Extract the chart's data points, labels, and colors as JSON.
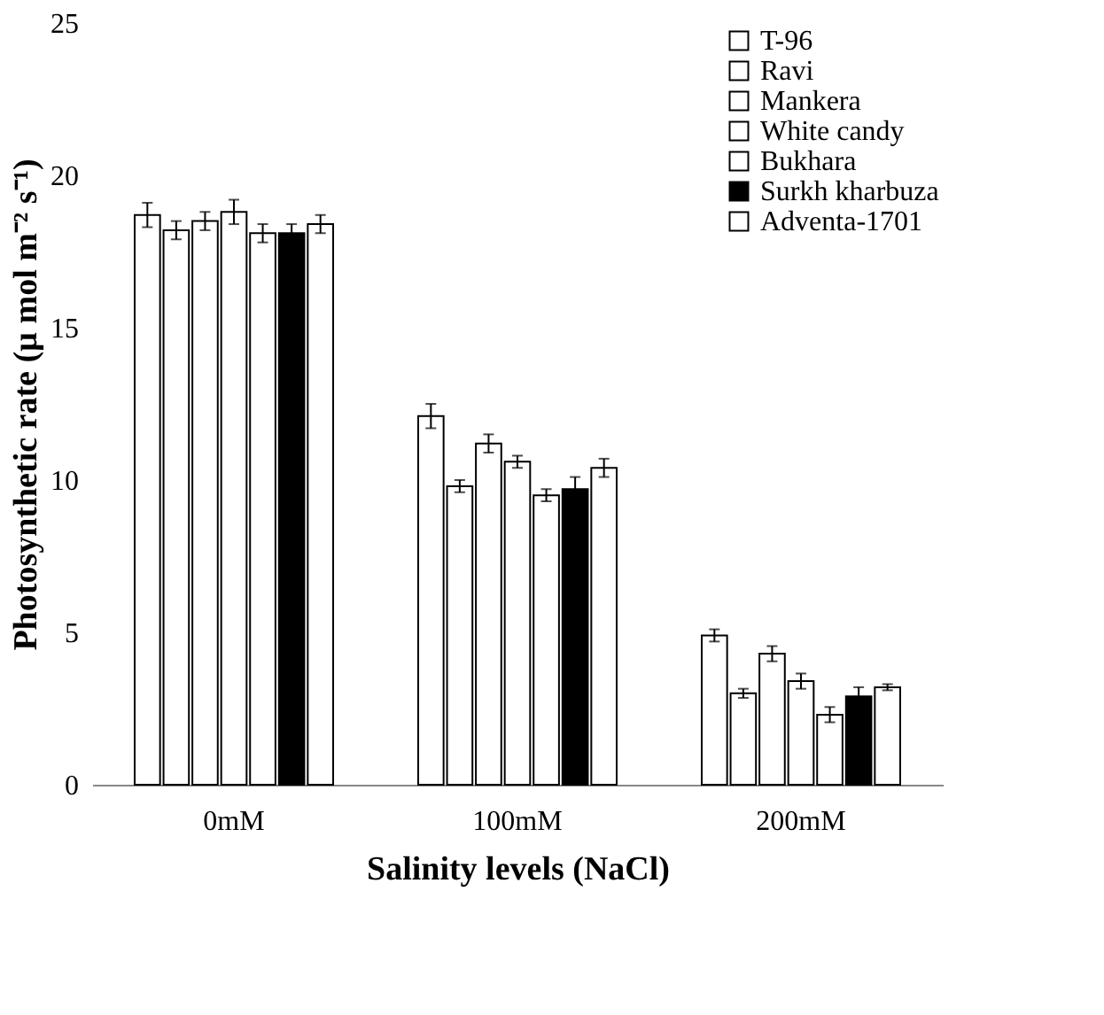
{
  "chart_data": {
    "type": "bar",
    "xlabel": "Salinity levels (NaCl)",
    "ylabel": "Photosynthetic rate (µ mol m⁻² s⁻¹)",
    "categories": [
      "0mM",
      "100mM",
      "200mM"
    ],
    "series": [
      {
        "name": "T-96",
        "color": "#ffffff",
        "values": [
          18.7,
          12.1,
          4.9
        ],
        "errors": [
          0.4,
          0.4,
          0.2
        ]
      },
      {
        "name": "Ravi",
        "color": "#ffffff",
        "values": [
          18.2,
          9.8,
          3.0
        ],
        "errors": [
          0.3,
          0.2,
          0.15
        ]
      },
      {
        "name": "Mankera",
        "color": "#ffffff",
        "values": [
          18.5,
          11.2,
          4.3
        ],
        "errors": [
          0.3,
          0.3,
          0.25
        ]
      },
      {
        "name": "White candy",
        "color": "#ffffff",
        "values": [
          18.8,
          10.6,
          3.4
        ],
        "errors": [
          0.4,
          0.2,
          0.25
        ]
      },
      {
        "name": "Bukhara",
        "color": "#ffffff",
        "values": [
          18.1,
          9.5,
          2.3
        ],
        "errors": [
          0.3,
          0.2,
          0.25
        ]
      },
      {
        "name": "Surkh kharbuza",
        "color": "#000000",
        "values": [
          18.1,
          9.7,
          2.9
        ],
        "errors": [
          0.3,
          0.4,
          0.3
        ]
      },
      {
        "name": "Adventa-1701",
        "color": "#ffffff",
        "values": [
          18.4,
          10.4,
          3.2
        ],
        "errors": [
          0.3,
          0.3,
          0.1
        ]
      }
    ],
    "ylim": [
      0,
      25
    ],
    "yticks": [
      0,
      5,
      10,
      15,
      20,
      25
    ],
    "grid": false,
    "legend": "top right"
  }
}
